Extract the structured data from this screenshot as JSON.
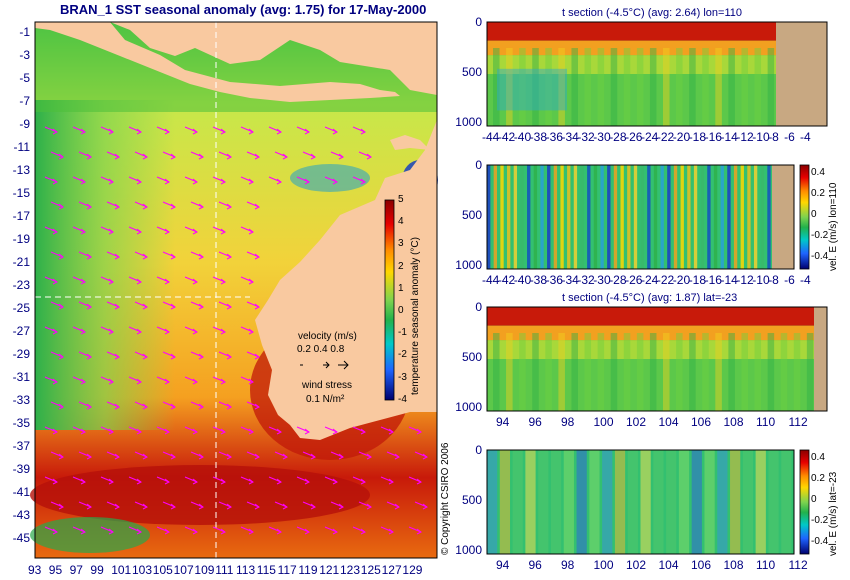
{
  "map": {
    "title": "BRAN_1 SST seasonal anomaly (avg: 1.75) for 17-May-2000",
    "lat_ticks": [
      "-1",
      "-3",
      "-5",
      "-7",
      "-9",
      "-11",
      "-13",
      "-15",
      "-17",
      "-19",
      "-21",
      "-23",
      "-25",
      "-27",
      "-29",
      "-31",
      "-33",
      "-35",
      "-37",
      "-39",
      "-41",
      "-43",
      "-45"
    ],
    "lon_ticks": [
      "93",
      "95",
      "97",
      "99",
      "101",
      "103",
      "105",
      "107",
      "109",
      "111",
      "113",
      "115",
      "117",
      "119",
      "121",
      "123",
      "125",
      "127",
      "129"
    ],
    "colorbar": {
      "label": "temperature seasonal anomaly (°C)",
      "ticks": [
        "5",
        "4",
        "3",
        "2",
        "1",
        "0",
        "-1",
        "-2",
        "-3",
        "-4"
      ],
      "range": [
        -4,
        5
      ]
    },
    "velocity_label": "velocity (m/s)",
    "velocity_scale": "0.2 0.4 0.8",
    "wind_label": "wind stress",
    "wind_scale": "0.1 N/m²",
    "copyright": "© Copyright CSIRO 2006",
    "section_lon": 110,
    "section_lat": -23,
    "colors": {
      "land": "#f9c9a0",
      "axis_text": "#000080",
      "arrows": "#ff00ff"
    }
  },
  "panels": [
    {
      "title": "t section (-4.5°C) (avg: 2.64) lon=110",
      "y_ticks": [
        "0",
        "500",
        "1000"
      ],
      "x_ticks": [
        "-44",
        "-42",
        "-40",
        "-38",
        "-36",
        "-34",
        "-32",
        "-30",
        "-28",
        "-26",
        "-24",
        "-22",
        "-20",
        "-18",
        "-16",
        "-14",
        "-12",
        "-10",
        "-8",
        "-6",
        "-4"
      ],
      "colorbar_label": "",
      "colorbar_ticks": []
    },
    {
      "title": "",
      "y_ticks": [
        "0",
        "500",
        "1000"
      ],
      "x_ticks": [
        "-44",
        "-42",
        "-40",
        "-38",
        "-36",
        "-34",
        "-32",
        "-30",
        "-28",
        "-26",
        "-24",
        "-22",
        "-20",
        "-18",
        "-16",
        "-14",
        "-12",
        "-10",
        "-8",
        "-6",
        "-4"
      ],
      "colorbar_label": "vel. E (m/s) lon=110",
      "colorbar_ticks": [
        "0.4",
        "0.2",
        "0",
        "-0.2",
        "-0.4"
      ]
    },
    {
      "title": "t section (-4.5°C) (avg: 1.87) lat=-23",
      "y_ticks": [
        "0",
        "500",
        "1000"
      ],
      "x_ticks": [
        "94",
        "96",
        "98",
        "100",
        "102",
        "104",
        "106",
        "108",
        "110",
        "112"
      ],
      "colorbar_label": "",
      "colorbar_ticks": []
    },
    {
      "title": "",
      "y_ticks": [
        "0",
        "500",
        "1000"
      ],
      "x_ticks": [
        "94",
        "96",
        "98",
        "100",
        "102",
        "104",
        "106",
        "108",
        "110",
        "112"
      ],
      "colorbar_label": "vel. E (m/s) lat=-23",
      "colorbar_ticks": [
        "0.4",
        "0.2",
        "0",
        "-0.2",
        "-0.4"
      ]
    }
  ],
  "chart_data": [
    {
      "type": "heatmap",
      "title": "BRAN_1 SST seasonal anomaly (avg: 1.75) for 17-May-2000",
      "xlabel": "",
      "ylabel": "",
      "xlim": [
        93,
        130
      ],
      "ylim": [
        -45,
        0
      ],
      "colorbar_label": "temperature seasonal anomaly (°C)",
      "colorbar_range": [
        -4,
        5
      ]
    },
    {
      "type": "heatmap",
      "title": "t section (-4.5°C) (avg: 2.64) lon=110",
      "xlim": [
        -45,
        -3
      ],
      "ylim": [
        1050,
        0
      ]
    },
    {
      "type": "heatmap",
      "title": "",
      "xlim": [
        -45,
        -3
      ],
      "ylim": [
        1050,
        0
      ],
      "colorbar_label": "vel. E (m/s) lon=110",
      "colorbar_range": [
        -0.45,
        0.45
      ]
    },
    {
      "type": "heatmap",
      "title": "t section (-4.5°C) (avg: 1.87) lat=-23",
      "xlim": [
        93,
        114
      ],
      "ylim": [
        1050,
        0
      ]
    },
    {
      "type": "heatmap",
      "title": "",
      "xlim": [
        93,
        114
      ],
      "ylim": [
        1050,
        0
      ],
      "colorbar_label": "vel. E (m/s) lat=-23",
      "colorbar_range": [
        -0.45,
        0.45
      ]
    }
  ]
}
